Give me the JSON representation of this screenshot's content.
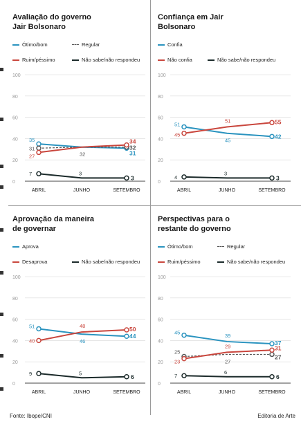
{
  "colors": {
    "blue": "#2a93bf",
    "red": "#c9463d",
    "black": "#1b2a2a",
    "gray": "#555555",
    "axis": "#9a9a9a"
  },
  "footer": {
    "source": "Fonte: Ibope/CNI",
    "credit": "Editoria de Arte"
  },
  "chart_data": [
    {
      "type": "line",
      "title": "Avaliação do governo Jair Bolsonaro",
      "categories": [
        "ABRIL",
        "JUNHO",
        "SETEMBRO"
      ],
      "ylim": [
        0,
        100
      ],
      "yticks": [
        "0",
        "20",
        "40",
        "60",
        "80",
        "100"
      ],
      "legend": [
        [
          "Ótimo/bom",
          "Regular"
        ],
        [
          "Ruim/péssimo",
          "Não sabe/não respondeu"
        ]
      ],
      "series": [
        {
          "name": "Ótimo/bom",
          "color": "blue",
          "dashed": false,
          "values": [
            35,
            32,
            31
          ],
          "labels": [
            "35",
            "",
            "31"
          ]
        },
        {
          "name": "Regular",
          "color": "gray",
          "dashed": true,
          "values": [
            31,
            32,
            32
          ],
          "labels": [
            "31",
            "32",
            "32"
          ]
        },
        {
          "name": "Ruim/péssimo",
          "color": "red",
          "dashed": false,
          "values": [
            27,
            32,
            34
          ],
          "labels": [
            "27",
            "",
            "34"
          ]
        },
        {
          "name": "Não sabe/não respondeu",
          "color": "black",
          "dashed": false,
          "values": [
            7,
            3,
            3
          ],
          "labels": [
            "7",
            "3",
            "3"
          ]
        }
      ]
    },
    {
      "type": "line",
      "title": "Confiança em Jair Bolsonaro",
      "categories": [
        "ABRIL",
        "JUNHO",
        "SETEMBRO"
      ],
      "ylim": [
        0,
        100
      ],
      "yticks": [
        "0",
        "20",
        "40",
        "60",
        "80",
        "100"
      ],
      "legend": [
        [
          "Confia"
        ],
        [
          "Não confia",
          "Não sabe/não respondeu"
        ]
      ],
      "series": [
        {
          "name": "Confia",
          "color": "blue",
          "dashed": false,
          "values": [
            51,
            45,
            42
          ],
          "labels": [
            "51",
            "45",
            "42"
          ]
        },
        {
          "name": "Não confia",
          "color": "red",
          "dashed": false,
          "values": [
            45,
            51,
            55
          ],
          "labels": [
            "45",
            "51",
            "55"
          ]
        },
        {
          "name": "Não sabe/não respondeu",
          "color": "black",
          "dashed": false,
          "values": [
            4,
            3,
            3
          ],
          "labels": [
            "4",
            "3",
            "3"
          ]
        }
      ]
    },
    {
      "type": "line",
      "title": "Aprovação da maneira de governar",
      "categories": [
        "ABRIL",
        "JUNHO",
        "SETEMBRO"
      ],
      "ylim": [
        0,
        100
      ],
      "yticks": [
        "0",
        "20",
        "40",
        "60",
        "80",
        "100"
      ],
      "legend": [
        [
          "Aprova"
        ],
        [
          "Desaprova",
          "Não sabe/não respondeu"
        ]
      ],
      "series": [
        {
          "name": "Aprova",
          "color": "blue",
          "dashed": false,
          "values": [
            51,
            46,
            44
          ],
          "labels": [
            "51",
            "46",
            "44"
          ]
        },
        {
          "name": "Desaprova",
          "color": "red",
          "dashed": false,
          "values": [
            40,
            48,
            50
          ],
          "labels": [
            "40",
            "48",
            "50"
          ]
        },
        {
          "name": "Não sabe/não respondeu",
          "color": "black",
          "dashed": false,
          "values": [
            9,
            5,
            6
          ],
          "labels": [
            "9",
            "5",
            "6"
          ]
        }
      ]
    },
    {
      "type": "line",
      "title": "Perspectivas para o restante do governo",
      "categories": [
        "ABRIL",
        "JUNHO",
        "SETEMBRO"
      ],
      "ylim": [
        0,
        100
      ],
      "yticks": [
        "0",
        "20",
        "40",
        "60",
        "80",
        "100"
      ],
      "legend": [
        [
          "Ótimo/bom",
          "Regular"
        ],
        [
          "Ruim/péssimo",
          "Não sabe/não respondeu"
        ]
      ],
      "series": [
        {
          "name": "Ótimo/bom",
          "color": "blue",
          "dashed": false,
          "values": [
            45,
            39,
            37
          ],
          "labels": [
            "45",
            "39",
            "37"
          ]
        },
        {
          "name": "Regular",
          "color": "gray",
          "dashed": true,
          "values": [
            25,
            27,
            27
          ],
          "labels": [
            "25",
            "27",
            "27"
          ]
        },
        {
          "name": "Ruim/péssimo",
          "color": "red",
          "dashed": false,
          "values": [
            23,
            29,
            31
          ],
          "labels": [
            "23",
            "29",
            "31"
          ]
        },
        {
          "name": "Não sabe/não respondeu",
          "color": "black",
          "dashed": false,
          "values": [
            7,
            6,
            6
          ],
          "labels": [
            "7",
            "6",
            "6"
          ]
        }
      ]
    }
  ]
}
